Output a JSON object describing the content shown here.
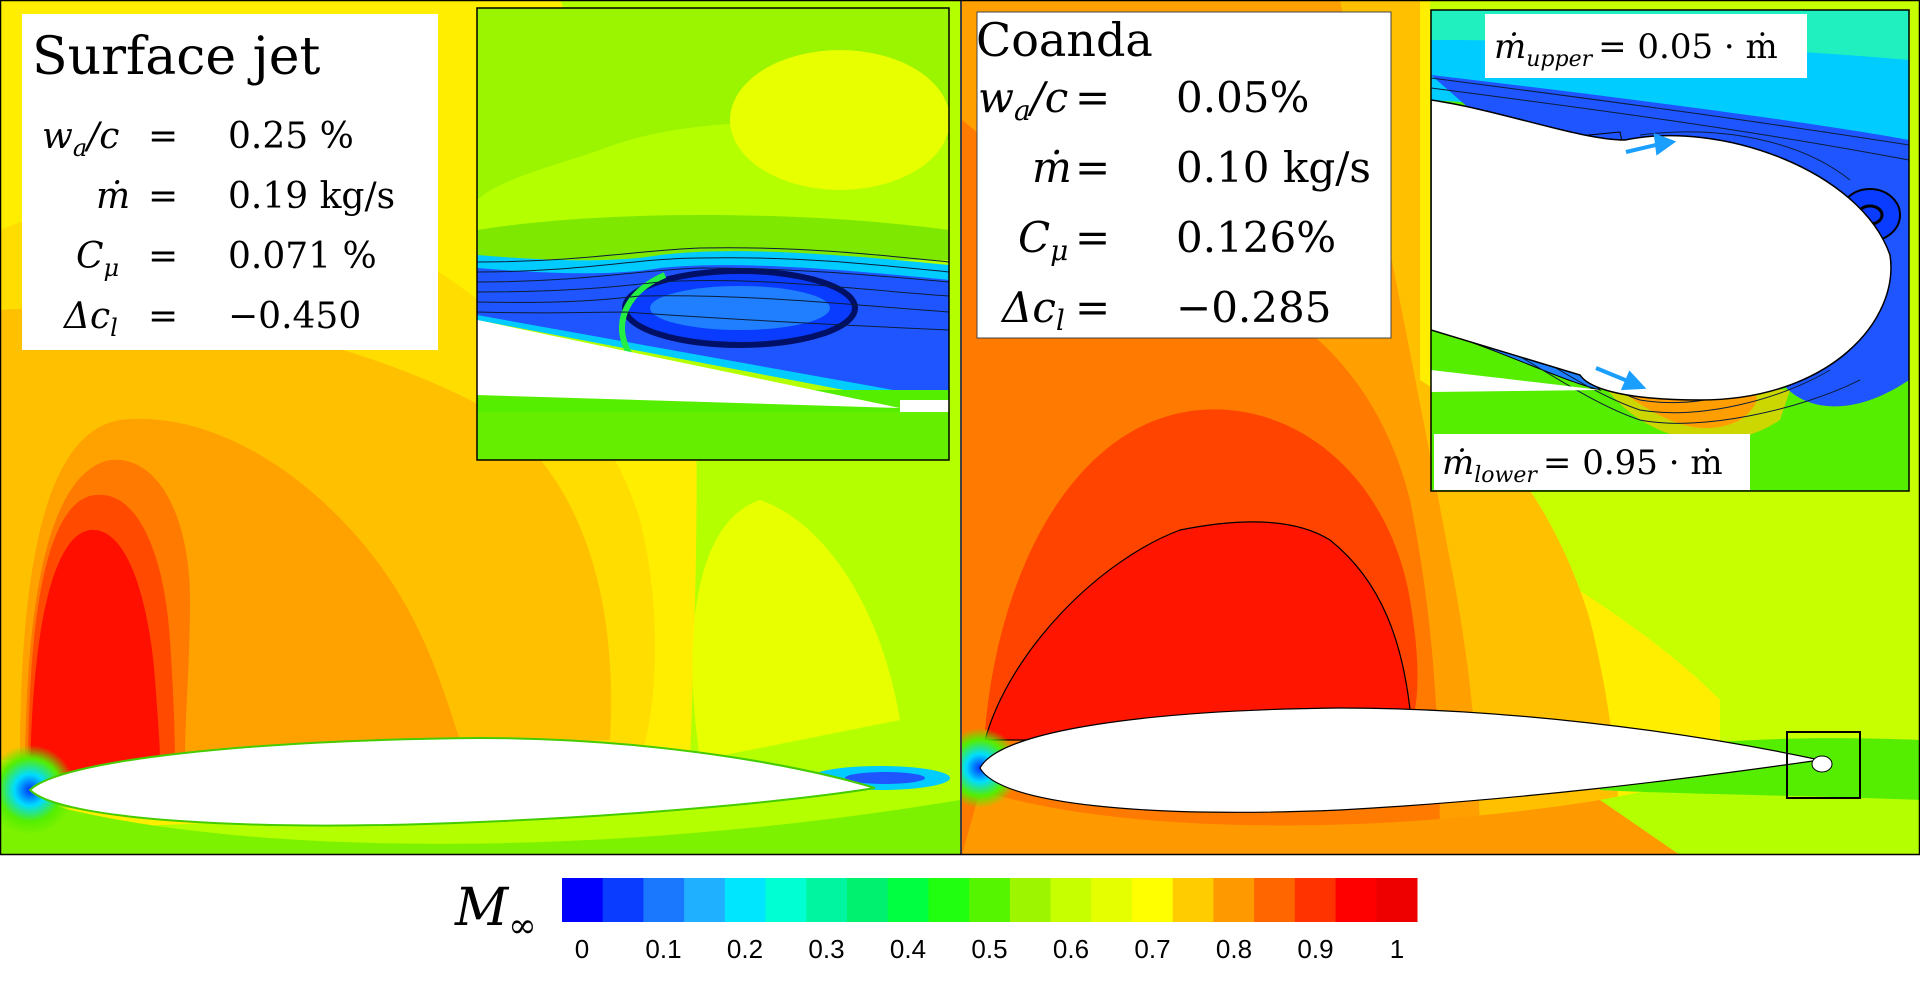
{
  "figure": {
    "left_panel": {
      "title": "Surface jet",
      "params": [
        {
          "lhs": "w",
          "lhs_sub": "a",
          "lhs_tail": "/c",
          "eq": "=",
          "val": "0.25 %"
        },
        {
          "lhs": "ṁ",
          "lhs_sub": "",
          "lhs_tail": "",
          "eq": "=",
          "val": "0.19 kg/s"
        },
        {
          "lhs": "C",
          "lhs_sub": "μ",
          "lhs_tail": "",
          "eq": "=",
          "val": "0.071 %"
        },
        {
          "lhs": "Δc",
          "lhs_sub": "l",
          "lhs_tail": "",
          "eq": "=",
          "val": "−0.450"
        }
      ]
    },
    "right_panel": {
      "title": "Coanda",
      "params": [
        {
          "lhs": "w",
          "lhs_sub": "a",
          "lhs_tail": "/c",
          "eq": "=",
          "val": "0.05%"
        },
        {
          "lhs": "ṁ",
          "lhs_sub": "",
          "lhs_tail": "",
          "eq": "=",
          "val": "0.10 kg/s"
        },
        {
          "lhs": "C",
          "lhs_sub": "μ",
          "lhs_tail": "",
          "eq": "=",
          "val": "0.126%"
        },
        {
          "lhs": "Δc",
          "lhs_sub": "l",
          "lhs_tail": "",
          "eq": "=",
          "val": "−0.285"
        }
      ],
      "inset_labels": {
        "upper": {
          "lhs": "ṁ",
          "sub": "upper",
          "rhs": "= 0.05 · ṁ"
        },
        "lower": {
          "lhs": "ṁ",
          "sub": "lower",
          "rhs": "= 0.95 · ṁ"
        }
      }
    },
    "legend": {
      "label": "M",
      "label_sub": "∞",
      "ticks": [
        "0",
        "0.1",
        "0.2",
        "0.3",
        "0.4",
        "0.5",
        "0.6",
        "0.7",
        "0.8",
        "0.9",
        "1"
      ],
      "colors": [
        "#0000ff",
        "#0a3cff",
        "#1a78ff",
        "#1fb0ff",
        "#00e6ff",
        "#00ffd2",
        "#00f5a0",
        "#00f070",
        "#00ff40",
        "#20ff10",
        "#55f500",
        "#9ef500",
        "#c8ff00",
        "#e6ff00",
        "#ffff00",
        "#ffcc00",
        "#ff9900",
        "#ff6600",
        "#ff3300",
        "#ff0000",
        "#ee0000"
      ]
    },
    "colors": {
      "far_field": "#b4ff00",
      "yellow": "#ffe600",
      "orange": "#ffaa00",
      "dark_orange": "#ff7700",
      "red": "#ff1a00",
      "green": "#55ee00",
      "blue": "#1f55ff",
      "cyan": "#00ccff",
      "arrow": "#1a9fff"
    }
  }
}
